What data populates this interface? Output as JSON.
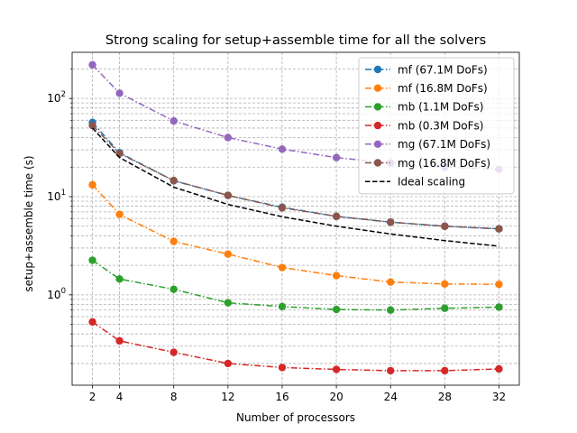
{
  "chart_data": {
    "type": "line",
    "title": "Strong scaling for setup+assemble time for all the solvers",
    "xlabel": "Number of processors",
    "ylabel": "setup+assemble time (s)",
    "yscale": "log",
    "grid": true,
    "legend_position": "top-right",
    "xlim": [
      0.5,
      33.5
    ],
    "ylim_log10": [
      -0.92,
      2.47
    ],
    "x_ticks": [
      2,
      4,
      8,
      12,
      16,
      20,
      24,
      28,
      32
    ],
    "y_major_ticks": [
      {
        "value": 1,
        "base": "10",
        "exp": "0"
      },
      {
        "value": 10,
        "base": "10",
        "exp": "1"
      },
      {
        "value": 100,
        "base": "10",
        "exp": "2"
      }
    ],
    "x": [
      2,
      4,
      8,
      12,
      16,
      20,
      24,
      28,
      32
    ],
    "series": [
      {
        "name": "mf (67.1M DoFs)",
        "color": "#1f77b4",
        "style": "dashdot",
        "marker": true,
        "values": [
          57,
          28,
          14.5,
          10.3,
          7.8,
          6.3,
          5.5,
          5.0,
          4.7
        ]
      },
      {
        "name": "mf (16.8M DoFs)",
        "color": "#ff7f0e",
        "style": "dashdot",
        "marker": true,
        "values": [
          13.2,
          6.6,
          3.5,
          2.6,
          1.9,
          1.57,
          1.35,
          1.29,
          1.28
        ]
      },
      {
        "name": "mb (1.1M DoFs)",
        "color": "#2ca02c",
        "style": "dashdot",
        "marker": true,
        "values": [
          2.25,
          1.45,
          1.14,
          0.83,
          0.76,
          0.71,
          0.7,
          0.73,
          0.75
        ]
      },
      {
        "name": "mb (0.3M DoFs)",
        "color": "#d62728",
        "style": "dashdot",
        "marker": true,
        "values": [
          0.53,
          0.34,
          0.26,
          0.2,
          0.182,
          0.174,
          0.169,
          0.169,
          0.176
        ]
      },
      {
        "name": "mg (67.1M DoFs)",
        "color": "#9467bd",
        "style": "dashdot",
        "marker": true,
        "values": [
          220,
          113,
          59,
          40,
          30.5,
          25,
          22,
          20,
          19
        ]
      },
      {
        "name": "mg (16.8M DoFs)",
        "color": "#8c564b",
        "style": "dashdot",
        "marker": true,
        "values": [
          53,
          27.5,
          14.6,
          10.3,
          7.7,
          6.3,
          5.5,
          5.0,
          4.7
        ]
      },
      {
        "name": "Ideal scaling",
        "color": "#000000",
        "style": "dashed",
        "marker": false,
        "values": [
          50,
          25,
          12.5,
          8.33,
          6.25,
          5.0,
          4.17,
          3.57,
          3.13
        ]
      }
    ]
  }
}
